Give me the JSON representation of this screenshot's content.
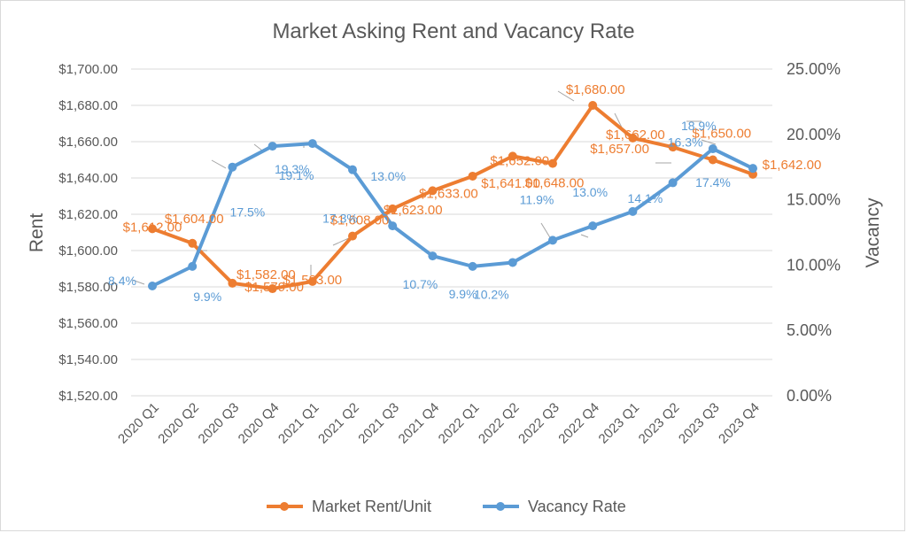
{
  "chart_data": {
    "type": "line",
    "title": "Market Asking Rent and Vacancy Rate",
    "ylabel": "Rent",
    "y2label": "Vacancy",
    "categories": [
      "2020 Q1",
      "2020 Q2",
      "2020 Q3",
      "2020 Q4",
      "2021 Q1",
      "2021 Q2",
      "2021 Q3",
      "2021 Q4",
      "2022 Q1",
      "2022 Q2",
      "2022 Q3",
      "2022 Q4",
      "2023 Q1",
      "2023 Q2",
      "2023 Q3",
      "2023 Q4"
    ],
    "ylim": [
      1520,
      1700
    ],
    "y2lim": [
      0,
      25
    ],
    "yticks": [
      "$1,520.00",
      "$1,540.00",
      "$1,560.00",
      "$1,580.00",
      "$1,600.00",
      "$1,620.00",
      "$1,640.00",
      "$1,660.00",
      "$1,680.00",
      "$1,700.00"
    ],
    "y2ticks": [
      "0.00%",
      "5.00%",
      "10.00%",
      "15.00%",
      "20.00%",
      "25.00%"
    ],
    "grid": true,
    "legend_position": "bottom",
    "series": [
      {
        "name": "Market Rent/Unit",
        "axis": "left",
        "color": "#ed7d31",
        "values": [
          1612,
          1604,
          1582,
          1579,
          1583,
          1608,
          1623,
          1633,
          1641,
          1652,
          1648,
          1680,
          1662,
          1657,
          1650,
          1642
        ],
        "labels": [
          "$1,612.00",
          "$1,604.00",
          "$1,582.00",
          "$1,579.00",
          "$1,583.00",
          "$1,608.00",
          "$1,623.00",
          "$1,633.00",
          "$1,641.00",
          "$1,652.00",
          "$1,648.00",
          "$1,680.00",
          "$1,662.00",
          "$1,657.00",
          "$1,650.00",
          "$1,642.00"
        ]
      },
      {
        "name": "Vacancy Rate",
        "axis": "right",
        "color": "#5b9bd5",
        "values": [
          8.4,
          9.9,
          17.5,
          19.1,
          19.3,
          17.3,
          13.0,
          10.7,
          9.9,
          10.2,
          11.9,
          13.0,
          14.1,
          16.3,
          18.9,
          17.4
        ],
        "labels": [
          "8.4%",
          "9.9%",
          "17.5%",
          "19.1%",
          "19.3%",
          "17.3%",
          "13.0%",
          "10.7%",
          "9.9%",
          "10.2%",
          "11.9%",
          "13.0%",
          "14.1%",
          "16.3%",
          "18.9%",
          "17.4%"
        ]
      }
    ]
  }
}
